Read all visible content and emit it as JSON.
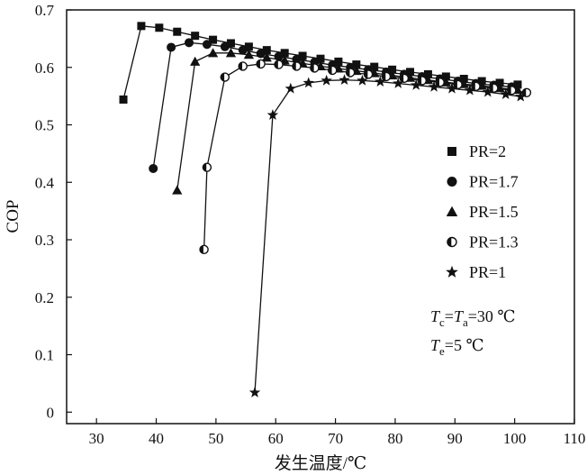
{
  "chart_data": {
    "type": "line",
    "xlabel": "发生温度/℃",
    "ylabel": "COP",
    "xlim": [
      25,
      110
    ],
    "ylim": [
      -0.02,
      0.7
    ],
    "xticks": [
      30,
      40,
      50,
      60,
      70,
      80,
      90,
      100,
      110
    ],
    "yticks": [
      0,
      0.1,
      0.2,
      0.3,
      0.4,
      0.5,
      0.6,
      0.7
    ],
    "grid": false,
    "legend_position": "right",
    "series": [
      {
        "name": "PR=2",
        "marker": "square",
        "x": [
          34.5,
          37.5,
          40.5,
          43.5,
          46.5,
          49.5,
          52.5,
          55.5,
          58.5,
          61.5,
          64.5,
          67.5,
          70.5,
          73.5,
          76.5,
          79.5,
          82.5,
          85.5,
          88.5,
          91.5,
          94.5,
          97.5,
          100.5
        ],
        "y": [
          0.544,
          0.672,
          0.669,
          0.662,
          0.655,
          0.648,
          0.642,
          0.636,
          0.63,
          0.625,
          0.62,
          0.615,
          0.61,
          0.605,
          0.601,
          0.596,
          0.592,
          0.588,
          0.584,
          0.58,
          0.576,
          0.573,
          0.57
        ]
      },
      {
        "name": "PR=1.7",
        "marker": "circle",
        "x": [
          39.5,
          42.5,
          45.5,
          48.5,
          51.5,
          54.5,
          57.5,
          60.5,
          63.5,
          66.5,
          69.5,
          72.5,
          75.5,
          78.5,
          81.5,
          84.5,
          87.5,
          90.5,
          93.5,
          96.5,
          99.5
        ],
        "y": [
          0.424,
          0.635,
          0.643,
          0.64,
          0.636,
          0.63,
          0.624,
          0.619,
          0.614,
          0.609,
          0.604,
          0.6,
          0.596,
          0.592,
          0.588,
          0.584,
          0.58,
          0.576,
          0.572,
          0.569,
          0.566
        ]
      },
      {
        "name": "PR=1.5",
        "marker": "triangle",
        "x": [
          43.5,
          46.5,
          49.5,
          52.5,
          55.5,
          58.5,
          61.5,
          64.5,
          67.5,
          70.5,
          73.5,
          76.5,
          79.5,
          82.5,
          85.5,
          88.5,
          91.5,
          94.5,
          97.5,
          100.5
        ],
        "y": [
          0.386,
          0.61,
          0.625,
          0.625,
          0.622,
          0.617,
          0.612,
          0.607,
          0.602,
          0.598,
          0.594,
          0.59,
          0.586,
          0.582,
          0.578,
          0.574,
          0.571,
          0.568,
          0.564,
          0.561
        ]
      },
      {
        "name": "PR=1.3",
        "marker": "half-circle",
        "x": [
          48,
          48.5,
          51.5,
          54.5,
          57.5,
          60.5,
          63.5,
          66.5,
          69.5,
          72.5,
          75.5,
          78.5,
          81.5,
          84.5,
          87.5,
          90.5,
          93.5,
          96.5,
          99.5,
          102
        ],
        "y": [
          0.283,
          0.426,
          0.583,
          0.602,
          0.606,
          0.605,
          0.602,
          0.599,
          0.595,
          0.591,
          0.588,
          0.584,
          0.581,
          0.577,
          0.574,
          0.57,
          0.567,
          0.564,
          0.56,
          0.556
        ]
      },
      {
        "name": "PR=1",
        "marker": "star",
        "x": [
          56.5,
          59.5,
          62.5,
          65.5,
          68.5,
          71.5,
          74.5,
          77.5,
          80.5,
          83.5,
          86.5,
          89.5,
          92.5,
          95.5,
          98.5,
          101
        ],
        "y": [
          0.034,
          0.517,
          0.563,
          0.573,
          0.577,
          0.578,
          0.577,
          0.575,
          0.572,
          0.569,
          0.566,
          0.563,
          0.56,
          0.557,
          0.553,
          0.549
        ]
      }
    ]
  },
  "annotation": {
    "line1": {
      "T1": "T",
      "s1": "c",
      "eq": "=",
      "T2": "T",
      "s2": "a",
      "val": "=30 ℃"
    },
    "line2": {
      "T1": "T",
      "s1": "e",
      "val": "=5 ℃"
    }
  }
}
